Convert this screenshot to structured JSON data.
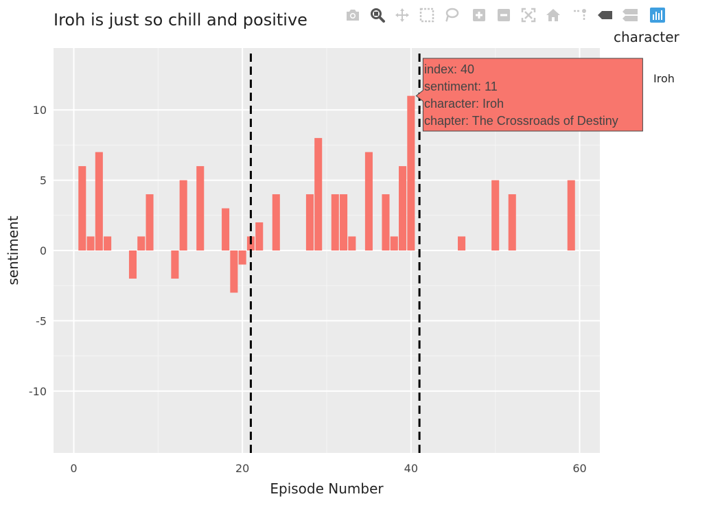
{
  "chart_data": {
    "type": "bar",
    "title": "Iroh is just so chill and positive",
    "xlabel": "Episode Number",
    "ylabel": "sentiment",
    "xlim": [
      -2.4,
      62.4
    ],
    "ylim": [
      -14.4,
      14.4
    ],
    "xticks": [
      0,
      20,
      40,
      60
    ],
    "yticks": [
      -10,
      -5,
      0,
      5,
      10
    ],
    "grid": true,
    "legend_position": "right",
    "legend_title": "character",
    "bar_color": "#F8766D",
    "series": [
      {
        "name": "Iroh",
        "x": [
          1,
          2,
          3,
          4,
          7,
          8,
          9,
          12,
          13,
          15,
          18,
          19,
          20,
          21,
          22,
          24,
          28,
          29,
          31,
          32,
          33,
          35,
          37,
          38,
          39,
          40,
          46,
          50,
          52,
          59
        ],
        "values": [
          6,
          1,
          7,
          1,
          -2,
          1,
          4,
          -2,
          5,
          6,
          3,
          -3,
          -1,
          1,
          2,
          4,
          4,
          8,
          4,
          4,
          1,
          7,
          4,
          1,
          6,
          11,
          1,
          5,
          4,
          5
        ]
      }
    ],
    "vlines": [
      21,
      41
    ],
    "vline_style": "dashed",
    "tooltip": {
      "x": 40,
      "value": 11,
      "lines": [
        "index: 40",
        "sentiment: 11",
        "character: Iroh",
        "chapter: The Crossroads of Destiny"
      ]
    }
  },
  "modebar": {
    "icons": [
      "camera-icon",
      "zoom-icon",
      "pan-icon",
      "box-select-icon",
      "lasso-icon",
      "zoom-in-icon",
      "zoom-out-icon",
      "autoscale-icon",
      "reset-axes-icon",
      "spike-lines-icon",
      "hover-closest-icon",
      "hover-compare-icon",
      "plotly-logo-icon"
    ],
    "active": "zoom-icon",
    "icon_color": "#c8c8c8",
    "active_color": "#555555",
    "logo_color": "#3f9fe0"
  }
}
